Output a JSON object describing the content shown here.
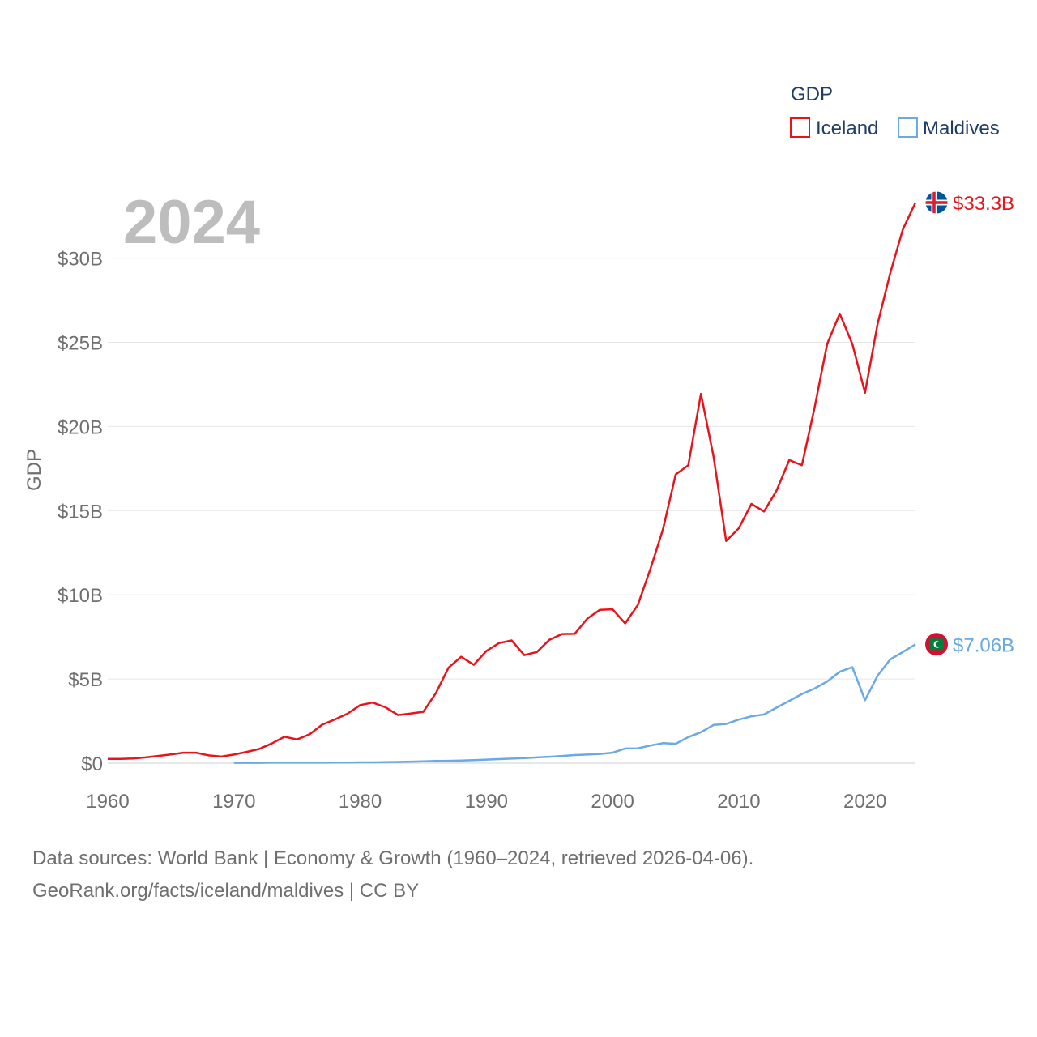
{
  "chart_data": {
    "type": "line",
    "year_label": "2024",
    "ylabel": "GDP",
    "legend": {
      "title": "GDP",
      "position": "top-right"
    },
    "xlim": [
      1960,
      2024
    ],
    "ylim": [
      0,
      33.3
    ],
    "x_ticks": [
      "1960",
      "1970",
      "1980",
      "1990",
      "2000",
      "2010",
      "2020"
    ],
    "y_ticks": [
      {
        "value": 0,
        "label": "$0"
      },
      {
        "value": 5,
        "label": "$5B"
      },
      {
        "value": 10,
        "label": "$10B"
      },
      {
        "value": 15,
        "label": "$15B"
      },
      {
        "value": 20,
        "label": "$20B"
      },
      {
        "value": 25,
        "label": "$25B"
      },
      {
        "value": 30,
        "label": "$30B"
      }
    ],
    "grid": true,
    "series": [
      {
        "name": "Iceland",
        "color": "#e8141c",
        "end_label": "$33.3B",
        "flag": "iceland-flag",
        "x": [
          1960,
          1961,
          1962,
          1963,
          1964,
          1965,
          1966,
          1967,
          1968,
          1969,
          1970,
          1971,
          1972,
          1973,
          1974,
          1975,
          1976,
          1977,
          1978,
          1979,
          1980,
          1981,
          1982,
          1983,
          1984,
          1985,
          1986,
          1987,
          1988,
          1989,
          1990,
          1991,
          1992,
          1993,
          1994,
          1995,
          1996,
          1997,
          1998,
          1999,
          2000,
          2001,
          2002,
          2003,
          2004,
          2005,
          2006,
          2007,
          2008,
          2009,
          2010,
          2011,
          2012,
          2013,
          2014,
          2015,
          2016,
          2017,
          2018,
          2019,
          2020,
          2021,
          2022,
          2023,
          2024
        ],
        "values": [
          0.25,
          0.25,
          0.28,
          0.34,
          0.43,
          0.52,
          0.62,
          0.62,
          0.46,
          0.39,
          0.51,
          0.67,
          0.84,
          1.17,
          1.57,
          1.41,
          1.72,
          2.29,
          2.6,
          2.94,
          3.45,
          3.6,
          3.32,
          2.86,
          2.95,
          3.05,
          4.16,
          5.67,
          6.32,
          5.84,
          6.66,
          7.13,
          7.29,
          6.42,
          6.6,
          7.33,
          7.67,
          7.68,
          8.59,
          9.11,
          9.14,
          8.3,
          9.4,
          11.55,
          13.9,
          17.15,
          17.7,
          21.94,
          18.2,
          13.2,
          13.95,
          15.4,
          14.95,
          16.2,
          18.0,
          17.7,
          21.1,
          24.9,
          26.7,
          24.9,
          22.0,
          26.1,
          29.1,
          31.7,
          33.3
        ]
      },
      {
        "name": "Maldives",
        "color": "#6aa9e3",
        "end_label": "$7.06B",
        "flag": "maldives-flag",
        "x": [
          1970,
          1971,
          1972,
          1973,
          1974,
          1975,
          1976,
          1977,
          1978,
          1979,
          1980,
          1981,
          1982,
          1983,
          1984,
          1985,
          1986,
          1987,
          1988,
          1989,
          1990,
          1991,
          1992,
          1993,
          1994,
          1995,
          1996,
          1997,
          1998,
          1999,
          2000,
          2001,
          2002,
          2003,
          2004,
          2005,
          2006,
          2007,
          2008,
          2009,
          2010,
          2011,
          2012,
          2013,
          2014,
          2015,
          2016,
          2017,
          2018,
          2019,
          2020,
          2021,
          2022,
          2023,
          2024
        ],
        "values": [
          0.02,
          0.02,
          0.02,
          0.03,
          0.03,
          0.03,
          0.03,
          0.03,
          0.04,
          0.04,
          0.05,
          0.05,
          0.06,
          0.07,
          0.09,
          0.11,
          0.13,
          0.14,
          0.16,
          0.18,
          0.21,
          0.24,
          0.27,
          0.3,
          0.34,
          0.38,
          0.43,
          0.48,
          0.51,
          0.55,
          0.62,
          0.87,
          0.88,
          1.05,
          1.19,
          1.15,
          1.55,
          1.84,
          2.27,
          2.33,
          2.59,
          2.78,
          2.89,
          3.3,
          3.7,
          4.11,
          4.43,
          4.85,
          5.43,
          5.7,
          3.74,
          5.2,
          6.16,
          6.6,
          7.06
        ]
      }
    ]
  },
  "footer": {
    "line1": "Data sources: World Bank | Economy & Growth (1960–2024, retrieved 2026-04-06).",
    "line2": "GeoRank.org/facts/iceland/maldives | CC BY"
  }
}
